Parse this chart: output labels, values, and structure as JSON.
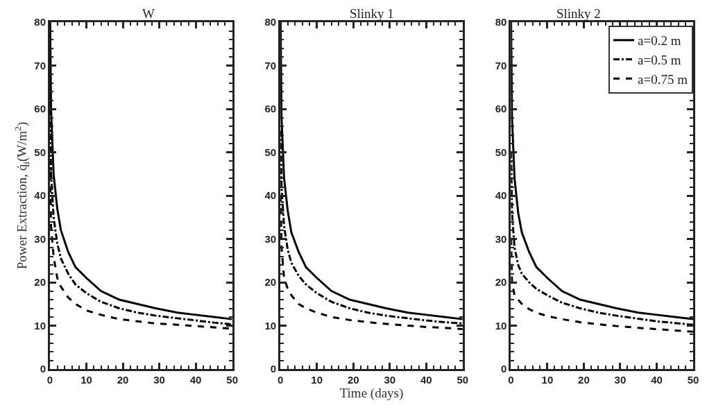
{
  "chart_data": [
    {
      "type": "line",
      "title": "W",
      "ylabel": "Power Extraction, q̇$_{i}$(W/m$^{2}$)",
      "xlim": [
        0,
        50
      ],
      "ylim": [
        0,
        80
      ],
      "xticks": [
        0,
        10,
        20,
        30,
        40,
        50
      ],
      "yticks": [
        0,
        10,
        20,
        30,
        40,
        50,
        60,
        70,
        80
      ],
      "legend": false,
      "marker": "none",
      "series": [
        {
          "color": "#000000",
          "line_style": "solid",
          "x": [
            0.05,
            0.3,
            1,
            2,
            3,
            5,
            7,
            10,
            14,
            19,
            24,
            29,
            35,
            40,
            45,
            50
          ],
          "values": [
            80,
            60,
            45,
            37,
            32,
            27,
            23.5,
            21,
            18,
            16,
            15,
            14,
            13,
            12.5,
            12,
            11.5
          ]
        },
        {
          "color": "#000000",
          "line_style": "dashdot",
          "x": [
            0.05,
            0.3,
            1,
            2,
            3,
            5,
            7,
            10,
            14,
            19,
            24,
            29,
            35,
            40,
            45,
            50
          ],
          "values": [
            60,
            45,
            35,
            29,
            25.5,
            22,
            19.5,
            17.5,
            15.5,
            14,
            13,
            12.3,
            11.7,
            11.2,
            10.7,
            10.3
          ]
        },
        {
          "color": "#000000",
          "line_style": "dashed",
          "x": [
            0.05,
            0.3,
            1,
            2,
            3,
            5,
            7,
            10,
            14,
            19,
            24,
            29,
            35,
            40,
            45,
            50
          ],
          "values": [
            45,
            33,
            26,
            21,
            19,
            16.5,
            15,
            13.5,
            12.5,
            11.5,
            11,
            10.5,
            10.2,
            9.9,
            9.6,
            9.3
          ]
        }
      ]
    },
    {
      "type": "line",
      "title": "Slinky 1",
      "xlabel": "Time (days)",
      "xlim": [
        0,
        50
      ],
      "ylim": [
        0,
        80
      ],
      "xticks": [
        0,
        10,
        20,
        30,
        40,
        50
      ],
      "yticks": [
        0,
        10,
        20,
        30,
        40,
        50,
        60,
        70,
        80
      ],
      "legend": false,
      "marker": "none",
      "series": [
        {
          "color": "#000000",
          "line_style": "solid",
          "x": [
            0.05,
            0.3,
            1,
            2,
            3,
            5,
            7,
            10,
            14,
            19,
            24,
            29,
            35,
            40,
            45,
            50
          ],
          "values": [
            80,
            58,
            44,
            36.5,
            31.5,
            27,
            23.5,
            21,
            18,
            16,
            15,
            14,
            13,
            12.5,
            12,
            11.5
          ]
        },
        {
          "color": "#000000",
          "line_style": "dashdot",
          "x": [
            0.05,
            0.3,
            1,
            2,
            3,
            5,
            7,
            10,
            14,
            19,
            24,
            29,
            35,
            40,
            45,
            50
          ],
          "values": [
            55,
            42,
            33,
            27.5,
            24.5,
            21.5,
            19.5,
            17.5,
            15.5,
            14,
            13,
            12.3,
            11.7,
            11.2,
            10.8,
            10.5
          ]
        },
        {
          "color": "#000000",
          "line_style": "dashed",
          "x": [
            0.05,
            0.3,
            1,
            2,
            3,
            5,
            7,
            10,
            14,
            19,
            24,
            29,
            35,
            40,
            45,
            50
          ],
          "values": [
            40,
            28,
            21,
            18.5,
            17,
            15,
            14,
            13,
            12,
            11.3,
            10.8,
            10.4,
            10,
            9.7,
            9.5,
            9.2
          ]
        }
      ]
    },
    {
      "type": "line",
      "title": "Slinky 2",
      "xlim": [
        0,
        50
      ],
      "ylim": [
        0,
        80
      ],
      "xticks": [
        0,
        10,
        20,
        30,
        40,
        50
      ],
      "yticks": [
        0,
        10,
        20,
        30,
        40,
        50,
        60,
        70,
        80
      ],
      "legend": "top right",
      "marker": "none",
      "series": [
        {
          "name": "a=0.2 m",
          "color": "#000000",
          "line_style": "solid",
          "x": [
            0.05,
            0.3,
            1,
            2,
            3,
            5,
            7,
            10,
            14,
            19,
            24,
            29,
            35,
            40,
            45,
            50
          ],
          "values": [
            80,
            58,
            44,
            36,
            31.5,
            27,
            23.5,
            21,
            18,
            16,
            15,
            14,
            13,
            12.5,
            12,
            11.5
          ]
        },
        {
          "name": "a=0.5 m",
          "color": "#000000",
          "line_style": "dashdot",
          "x": [
            0.05,
            0.3,
            1,
            2,
            3,
            5,
            7,
            10,
            14,
            19,
            24,
            29,
            35,
            40,
            45,
            50
          ],
          "values": [
            50,
            36,
            28,
            24,
            22,
            20,
            18.5,
            17,
            15.3,
            14,
            13,
            12.3,
            11.6,
            11,
            10.6,
            10.2
          ]
        },
        {
          "name": "a=0.75 m",
          "color": "#000000",
          "line_style": "dashed",
          "x": [
            0.05,
            0.3,
            1,
            2,
            3,
            5,
            7,
            10,
            14,
            19,
            24,
            29,
            35,
            40,
            45,
            50
          ],
          "values": [
            30,
            20,
            17,
            16,
            15,
            13.8,
            13,
            12.2,
            11.5,
            10.8,
            10.3,
            9.9,
            9.5,
            9.2,
            8.9,
            8.6
          ]
        }
      ]
    }
  ]
}
